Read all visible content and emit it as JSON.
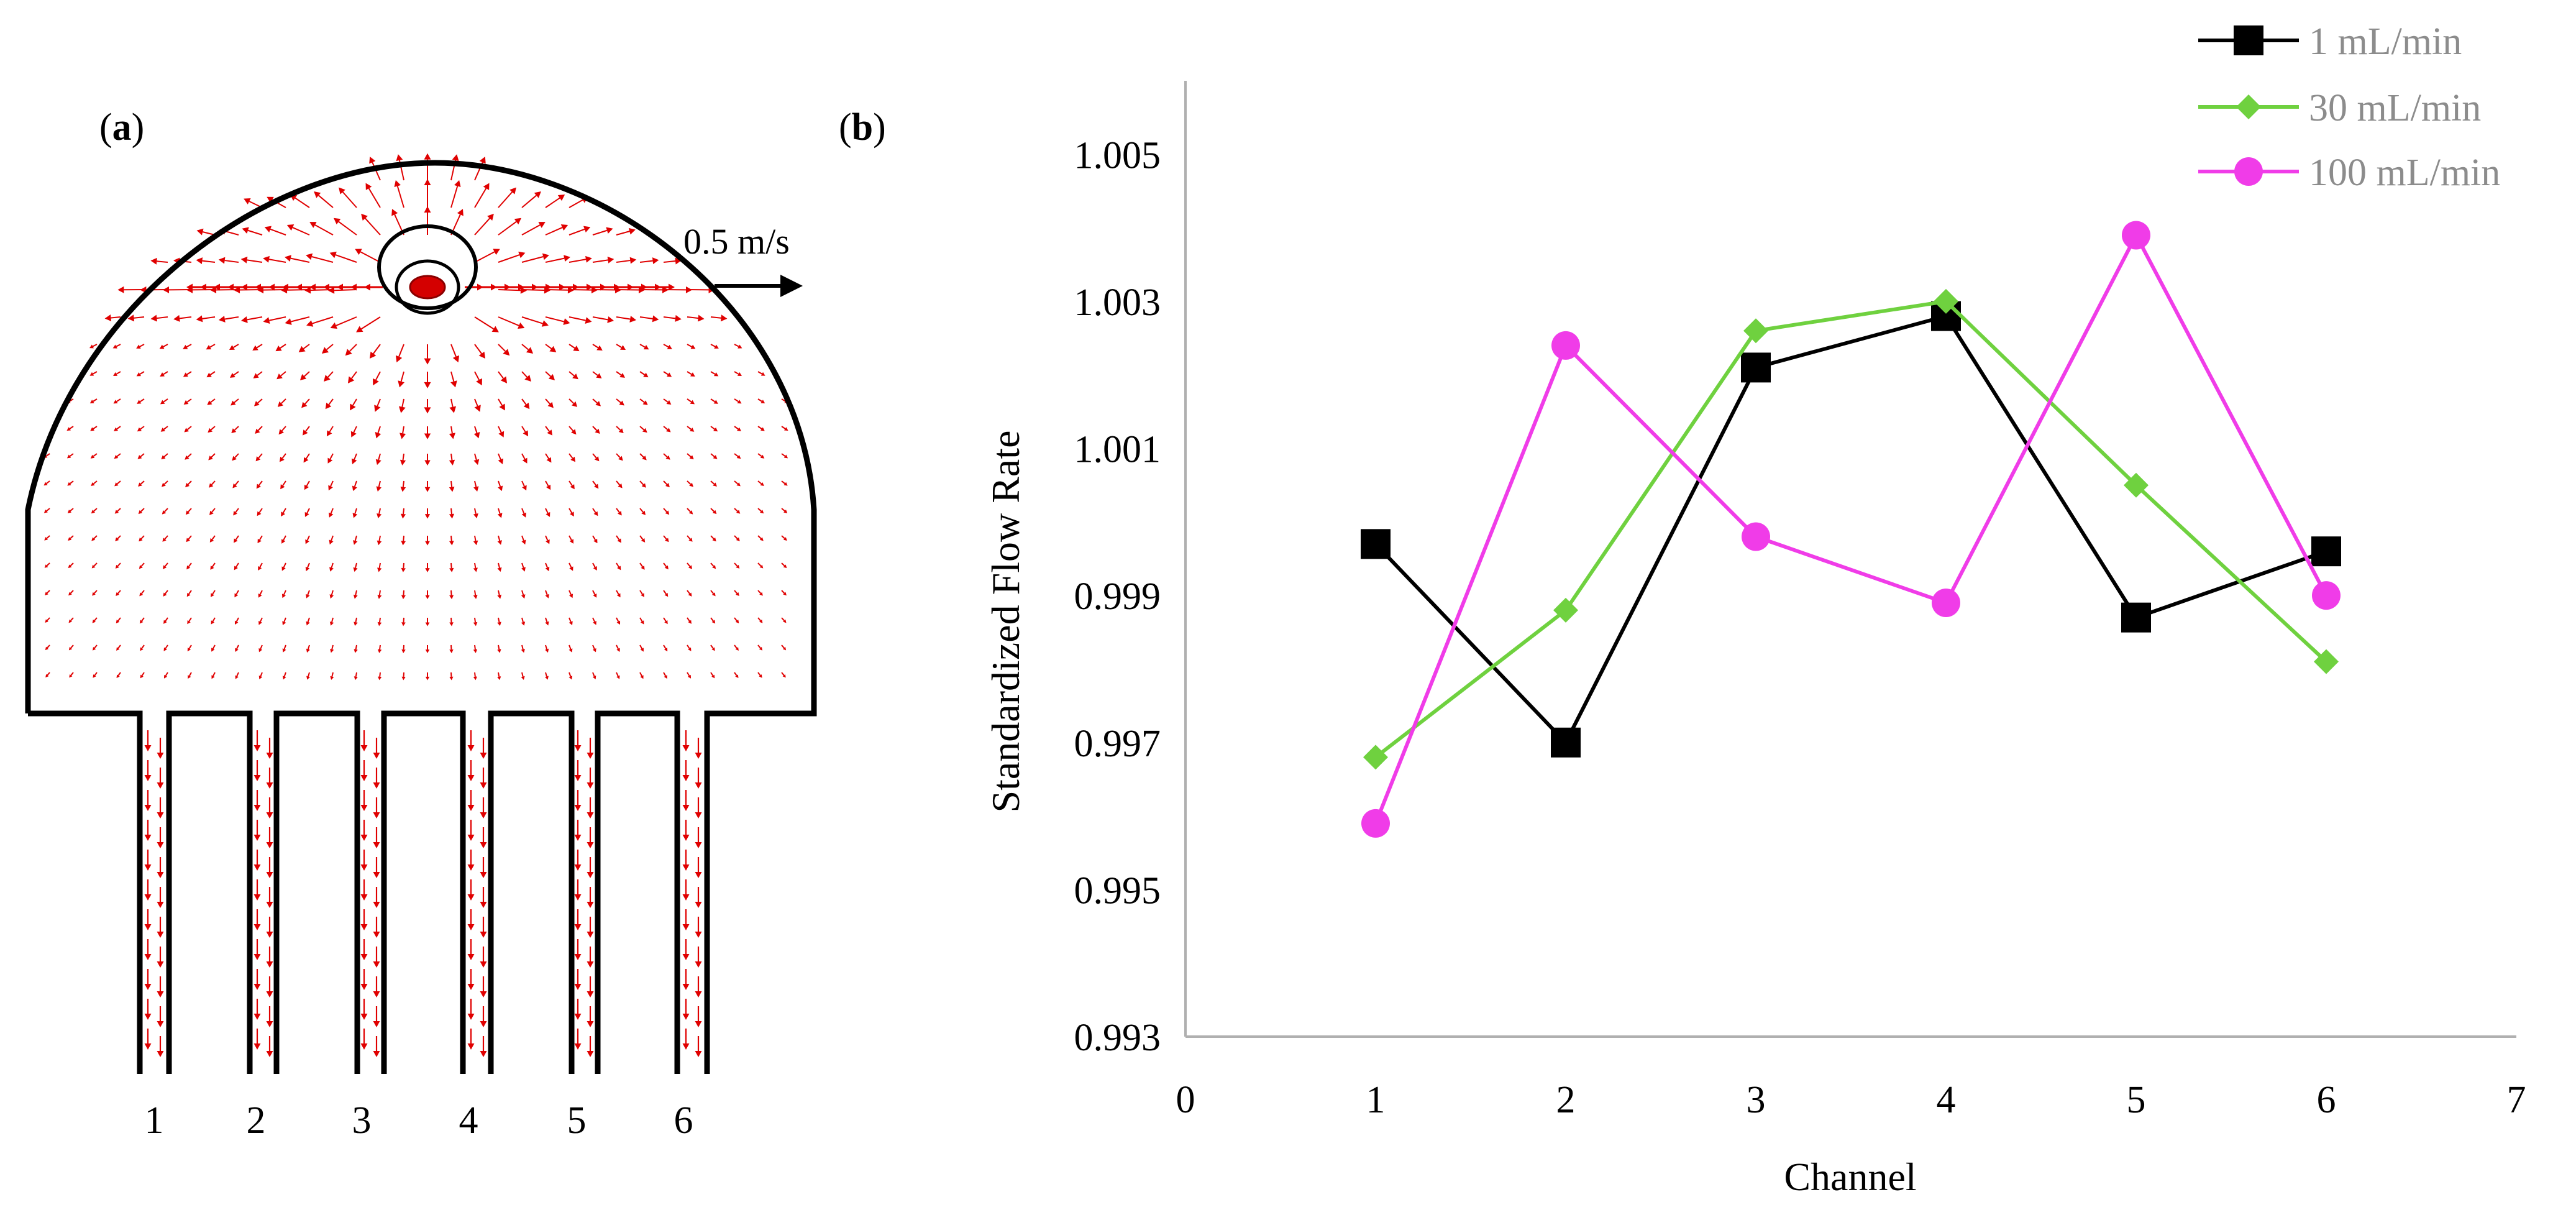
{
  "panel_a": {
    "label_open": "(",
    "label_letter": "a",
    "label_close": ")",
    "scale_label": "0.5 m/s",
    "channel_labels": [
      "1",
      "2",
      "3",
      "4",
      "5",
      "6"
    ],
    "vector_color": "#e00000"
  },
  "panel_b": {
    "label_open": "(",
    "label_letter": "b",
    "label_close": ")"
  },
  "chart_data": {
    "type": "line",
    "title": "",
    "xlabel": "Channel",
    "ylabel": "Standardized Flow Rate",
    "xlim": [
      0,
      7
    ],
    "ylim": [
      0.993,
      1.006
    ],
    "x_ticks": [
      "0",
      "1",
      "2",
      "3",
      "4",
      "5",
      "6",
      "7"
    ],
    "y_ticks": [
      "0.993",
      "0.995",
      "0.997",
      "0.999",
      "1.001",
      "1.003",
      "1.005"
    ],
    "y_tick_values": [
      0.993,
      0.995,
      0.997,
      0.999,
      1.001,
      1.003,
      1.005
    ],
    "legend_position": "top-right",
    "x": [
      1,
      2,
      3,
      4,
      5,
      6
    ],
    "series": [
      {
        "name": "1 mL/min",
        "color": "#000000",
        "marker": "square",
        "values": [
          0.9997,
          0.997,
          1.0021,
          1.0028,
          0.9987,
          0.9996
        ]
      },
      {
        "name": "30 mL/min",
        "color": "#6fd13f",
        "marker": "diamond",
        "values": [
          0.9968,
          0.9988,
          1.0026,
          1.003,
          1.0005,
          0.9981
        ]
      },
      {
        "name": "100 mL/min",
        "color": "#f03ce8",
        "marker": "circle",
        "values": [
          0.9959,
          1.0024,
          0.9998,
          0.9989,
          1.0039,
          0.999
        ]
      }
    ]
  }
}
